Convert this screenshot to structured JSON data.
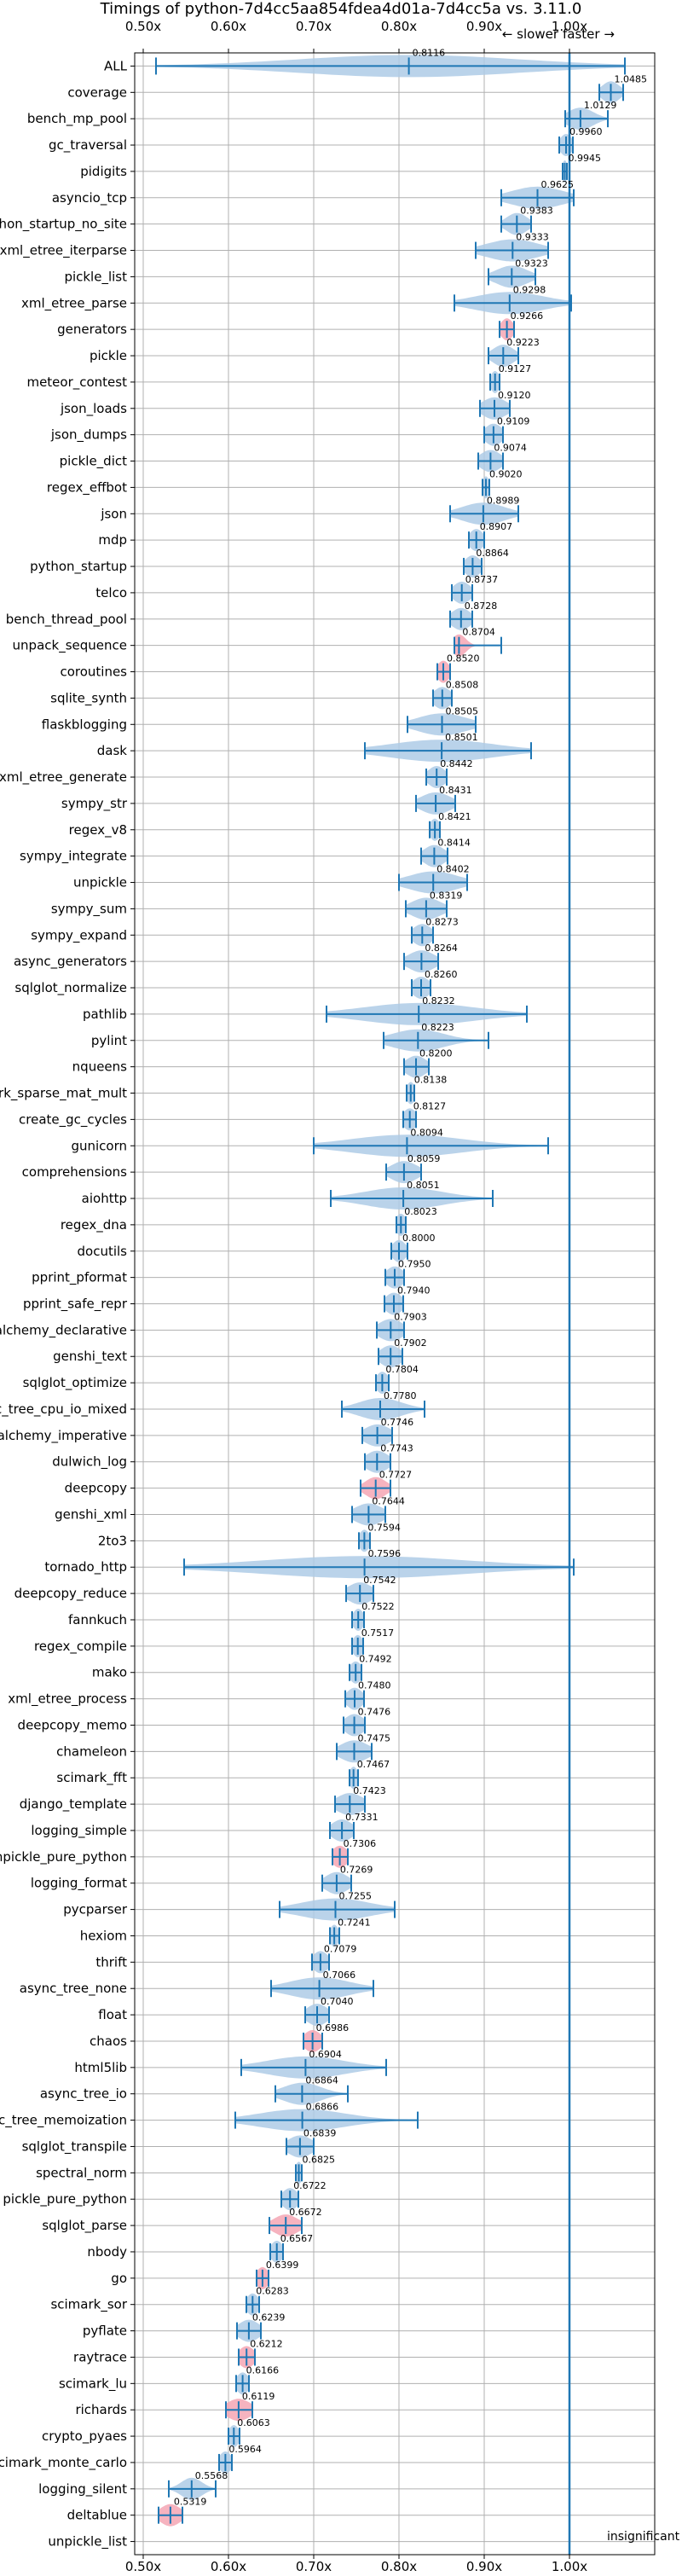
{
  "chart_data": {
    "type": "violin",
    "title": "Timings of python-7d4cc5aa854fdea4d01a-7d4cc5a vs. 3.11.0",
    "xlim": [
      0.49,
      1.1
    ],
    "xticks": [
      0.5,
      0.6,
      0.7,
      0.8,
      0.9,
      1.0
    ],
    "xtick_labels": [
      "0.50x",
      "0.60x",
      "0.70x",
      "0.80x",
      "0.90x",
      "1.00x"
    ],
    "reference_line": 1.0,
    "slower_label": "← slower",
    "faster_label": "faster →",
    "insignificant_label": "insignificant",
    "grid": true,
    "colors": {
      "violin": "#aecbe6",
      "error": "#1f77b4",
      "significant": "#f4a6b4",
      "grid": "#b0b0b0"
    },
    "series": [
      {
        "name": "ALL",
        "value": 0.8116,
        "label": "0.8116",
        "lo": 0.515,
        "hi": 1.065,
        "spread": 0.13,
        "sig": false
      },
      {
        "name": "coverage",
        "value": 1.0485,
        "label": "1.0485",
        "lo": 1.035,
        "hi": 1.063,
        "spread": 0.01,
        "sig": false
      },
      {
        "name": "bench_mp_pool",
        "value": 1.0129,
        "label": "1.0129",
        "lo": 0.995,
        "hi": 1.045,
        "spread": 0.015,
        "sig": false
      },
      {
        "name": "gc_traversal",
        "value": 0.996,
        "label": "0.9960",
        "lo": 0.988,
        "hi": 1.004,
        "spread": 0.007,
        "sig": false
      },
      {
        "name": "pidigits",
        "value": 0.9945,
        "label": "0.9945",
        "lo": 0.992,
        "hi": 0.997,
        "spread": 0.003,
        "sig": false
      },
      {
        "name": "asyncio_tcp",
        "value": 0.9625,
        "label": "0.9625",
        "lo": 0.92,
        "hi": 1.005,
        "spread": 0.03,
        "sig": false
      },
      {
        "name": "python_startup_no_site",
        "value": 0.9383,
        "label": "0.9383",
        "lo": 0.92,
        "hi": 0.955,
        "spread": 0.012,
        "sig": false
      },
      {
        "name": "xml_etree_iterparse",
        "value": 0.9333,
        "label": "0.9333",
        "lo": 0.89,
        "hi": 0.975,
        "spread": 0.03,
        "sig": false
      },
      {
        "name": "pickle_list",
        "value": 0.9323,
        "label": "0.9323",
        "lo": 0.905,
        "hi": 0.96,
        "spread": 0.018,
        "sig": false
      },
      {
        "name": "xml_etree_parse",
        "value": 0.9298,
        "label": "0.9298",
        "lo": 0.865,
        "hi": 1.002,
        "spread": 0.04,
        "sig": false
      },
      {
        "name": "generators",
        "value": 0.9266,
        "label": "0.9266",
        "lo": 0.918,
        "hi": 0.935,
        "spread": 0.007,
        "sig": true
      },
      {
        "name": "pickle",
        "value": 0.9223,
        "label": "0.9223",
        "lo": 0.905,
        "hi": 0.94,
        "spread": 0.012,
        "sig": false
      },
      {
        "name": "meteor_contest",
        "value": 0.9127,
        "label": "0.9127",
        "lo": 0.907,
        "hi": 0.918,
        "spread": 0.005,
        "sig": false
      },
      {
        "name": "json_loads",
        "value": 0.912,
        "label": "0.9120",
        "lo": 0.895,
        "hi": 0.93,
        "spread": 0.014,
        "sig": false
      },
      {
        "name": "json_dumps",
        "value": 0.9109,
        "label": "0.9109",
        "lo": 0.9,
        "hi": 0.922,
        "spread": 0.01,
        "sig": false
      },
      {
        "name": "pickle_dict",
        "value": 0.9074,
        "label": "0.9074",
        "lo": 0.893,
        "hi": 0.922,
        "spread": 0.012,
        "sig": false
      },
      {
        "name": "regex_effbot",
        "value": 0.902,
        "label": "0.9020",
        "lo": 0.898,
        "hi": 0.906,
        "spread": 0.004,
        "sig": false
      },
      {
        "name": "json",
        "value": 0.8989,
        "label": "0.8989",
        "lo": 0.86,
        "hi": 0.94,
        "spread": 0.025,
        "sig": false
      },
      {
        "name": "mdp",
        "value": 0.8907,
        "label": "0.8907",
        "lo": 0.882,
        "hi": 0.9,
        "spread": 0.008,
        "sig": false
      },
      {
        "name": "python_startup",
        "value": 0.8864,
        "label": "0.8864",
        "lo": 0.876,
        "hi": 0.897,
        "spread": 0.009,
        "sig": false
      },
      {
        "name": "telco",
        "value": 0.8737,
        "label": "0.8737",
        "lo": 0.862,
        "hi": 0.886,
        "spread": 0.01,
        "sig": false
      },
      {
        "name": "bench_thread_pool",
        "value": 0.8728,
        "label": "0.8728",
        "lo": 0.86,
        "hi": 0.886,
        "spread": 0.011,
        "sig": false
      },
      {
        "name": "unpack_sequence",
        "value": 0.8704,
        "label": "0.8704",
        "lo": 0.865,
        "hi": 0.92,
        "spread": 0.008,
        "sig": true
      },
      {
        "name": "coroutines",
        "value": 0.852,
        "label": "0.8520",
        "lo": 0.845,
        "hi": 0.86,
        "spread": 0.007,
        "sig": true
      },
      {
        "name": "sqlite_synth",
        "value": 0.8508,
        "label": "0.8508",
        "lo": 0.84,
        "hi": 0.862,
        "spread": 0.01,
        "sig": false
      },
      {
        "name": "flaskblogging",
        "value": 0.8505,
        "label": "0.8505",
        "lo": 0.81,
        "hi": 0.89,
        "spread": 0.028,
        "sig": false
      },
      {
        "name": "dask",
        "value": 0.8501,
        "label": "0.8501",
        "lo": 0.76,
        "hi": 0.955,
        "spread": 0.06,
        "sig": false
      },
      {
        "name": "xml_etree_generate",
        "value": 0.8442,
        "label": "0.8442",
        "lo": 0.832,
        "hi": 0.856,
        "spread": 0.01,
        "sig": false
      },
      {
        "name": "sympy_str",
        "value": 0.8431,
        "label": "0.8431",
        "lo": 0.82,
        "hi": 0.866,
        "spread": 0.017,
        "sig": false
      },
      {
        "name": "regex_v8",
        "value": 0.8421,
        "label": "0.8421",
        "lo": 0.836,
        "hi": 0.848,
        "spread": 0.006,
        "sig": false
      },
      {
        "name": "sympy_integrate",
        "value": 0.8414,
        "label": "0.8414",
        "lo": 0.826,
        "hi": 0.857,
        "spread": 0.012,
        "sig": false
      },
      {
        "name": "unpickle",
        "value": 0.8402,
        "label": "0.8402",
        "lo": 0.8,
        "hi": 0.88,
        "spread": 0.028,
        "sig": false
      },
      {
        "name": "sympy_sum",
        "value": 0.8319,
        "label": "0.8319",
        "lo": 0.808,
        "hi": 0.856,
        "spread": 0.017,
        "sig": false
      },
      {
        "name": "sympy_expand",
        "value": 0.8273,
        "label": "0.8273",
        "lo": 0.815,
        "hi": 0.84,
        "spread": 0.011,
        "sig": false
      },
      {
        "name": "async_generators",
        "value": 0.8264,
        "label": "0.8264",
        "lo": 0.806,
        "hi": 0.846,
        "spread": 0.015,
        "sig": false
      },
      {
        "name": "sqlglot_normalize",
        "value": 0.826,
        "label": "0.8260",
        "lo": 0.815,
        "hi": 0.837,
        "spread": 0.01,
        "sig": false
      },
      {
        "name": "pathlib",
        "value": 0.8232,
        "label": "0.8232",
        "lo": 0.715,
        "hi": 0.95,
        "spread": 0.065,
        "sig": false
      },
      {
        "name": "pylint",
        "value": 0.8223,
        "label": "0.8223",
        "lo": 0.782,
        "hi": 0.905,
        "spread": 0.03,
        "sig": false
      },
      {
        "name": "nqueens",
        "value": 0.82,
        "label": "0.8200",
        "lo": 0.806,
        "hi": 0.835,
        "spread": 0.012,
        "sig": false
      },
      {
        "name": "scimark_sparse_mat_mult",
        "value": 0.8138,
        "label": "0.8138",
        "lo": 0.809,
        "hi": 0.818,
        "spread": 0.005,
        "sig": false
      },
      {
        "name": "create_gc_cycles",
        "value": 0.8127,
        "label": "0.8127",
        "lo": 0.805,
        "hi": 0.82,
        "spread": 0.008,
        "sig": false
      },
      {
        "name": "gunicorn",
        "value": 0.8094,
        "label": "0.8094",
        "lo": 0.7,
        "hi": 0.975,
        "spread": 0.065,
        "sig": false
      },
      {
        "name": "comprehensions",
        "value": 0.8059,
        "label": "0.8059",
        "lo": 0.785,
        "hi": 0.826,
        "spread": 0.015,
        "sig": false
      },
      {
        "name": "aiohttp",
        "value": 0.8051,
        "label": "0.8051",
        "lo": 0.72,
        "hi": 0.91,
        "spread": 0.045,
        "sig": false
      },
      {
        "name": "regex_dna",
        "value": 0.8023,
        "label": "0.8023",
        "lo": 0.797,
        "hi": 0.808,
        "spread": 0.006,
        "sig": false
      },
      {
        "name": "docutils",
        "value": 0.8,
        "label": "0.8000",
        "lo": 0.791,
        "hi": 0.81,
        "spread": 0.008,
        "sig": false
      },
      {
        "name": "pprint_pformat",
        "value": 0.795,
        "label": "0.7950",
        "lo": 0.784,
        "hi": 0.806,
        "spread": 0.01,
        "sig": false
      },
      {
        "name": "pprint_safe_repr",
        "value": 0.794,
        "label": "0.7940",
        "lo": 0.783,
        "hi": 0.805,
        "spread": 0.01,
        "sig": false
      },
      {
        "name": "sqlalchemy_declarative",
        "value": 0.7903,
        "label": "0.7903",
        "lo": 0.774,
        "hi": 0.806,
        "spread": 0.014,
        "sig": false
      },
      {
        "name": "genshi_text",
        "value": 0.7902,
        "label": "0.7902",
        "lo": 0.776,
        "hi": 0.804,
        "spread": 0.012,
        "sig": false
      },
      {
        "name": "sqlglot_optimize",
        "value": 0.7804,
        "label": "0.7804",
        "lo": 0.773,
        "hi": 0.788,
        "spread": 0.007,
        "sig": false
      },
      {
        "name": "async_tree_cpu_io_mixed",
        "value": 0.778,
        "label": "0.7780",
        "lo": 0.733,
        "hi": 0.83,
        "spread": 0.025,
        "sig": false
      },
      {
        "name": "sqlalchemy_imperative",
        "value": 0.7746,
        "label": "0.7746",
        "lo": 0.757,
        "hi": 0.792,
        "spread": 0.015,
        "sig": false
      },
      {
        "name": "dulwich_log",
        "value": 0.7743,
        "label": "0.7743",
        "lo": 0.76,
        "hi": 0.79,
        "spread": 0.013,
        "sig": false
      },
      {
        "name": "deepcopy",
        "value": 0.7727,
        "label": "0.7727",
        "lo": 0.755,
        "hi": 0.79,
        "spread": 0.012,
        "sig": true
      },
      {
        "name": "genshi_xml",
        "value": 0.7644,
        "label": "0.7644",
        "lo": 0.745,
        "hi": 0.784,
        "spread": 0.016,
        "sig": false
      },
      {
        "name": "2to3",
        "value": 0.7594,
        "label": "0.7594",
        "lo": 0.753,
        "hi": 0.766,
        "spread": 0.006,
        "sig": false
      },
      {
        "name": "tornado_http",
        "value": 0.7596,
        "label": "0.7596",
        "lo": 0.548,
        "hi": 1.005,
        "spread": 0.12,
        "sig": false
      },
      {
        "name": "deepcopy_reduce",
        "value": 0.7542,
        "label": "0.7542",
        "lo": 0.738,
        "hi": 0.77,
        "spread": 0.014,
        "sig": false
      },
      {
        "name": "fannkuch",
        "value": 0.7522,
        "label": "0.7522",
        "lo": 0.745,
        "hi": 0.759,
        "spread": 0.006,
        "sig": false
      },
      {
        "name": "regex_compile",
        "value": 0.7517,
        "label": "0.7517",
        "lo": 0.745,
        "hi": 0.758,
        "spread": 0.006,
        "sig": false
      },
      {
        "name": "mako",
        "value": 0.7492,
        "label": "0.7492",
        "lo": 0.742,
        "hi": 0.756,
        "spread": 0.007,
        "sig": false
      },
      {
        "name": "xml_etree_process",
        "value": 0.748,
        "label": "0.7480",
        "lo": 0.737,
        "hi": 0.759,
        "spread": 0.009,
        "sig": false
      },
      {
        "name": "deepcopy_memo",
        "value": 0.7476,
        "label": "0.7476",
        "lo": 0.735,
        "hi": 0.76,
        "spread": 0.011,
        "sig": false
      },
      {
        "name": "chameleon",
        "value": 0.7475,
        "label": "0.7475",
        "lo": 0.727,
        "hi": 0.768,
        "spread": 0.016,
        "sig": false
      },
      {
        "name": "scimark_fft",
        "value": 0.7467,
        "label": "0.7467",
        "lo": 0.742,
        "hi": 0.752,
        "spread": 0.005,
        "sig": false
      },
      {
        "name": "django_template",
        "value": 0.7423,
        "label": "0.7423",
        "lo": 0.725,
        "hi": 0.76,
        "spread": 0.015,
        "sig": false
      },
      {
        "name": "logging_simple",
        "value": 0.7331,
        "label": "0.7331",
        "lo": 0.719,
        "hi": 0.747,
        "spread": 0.012,
        "sig": false
      },
      {
        "name": "unpickle_pure_python",
        "value": 0.7306,
        "label": "0.7306",
        "lo": 0.722,
        "hi": 0.74,
        "spread": 0.009,
        "sig": true
      },
      {
        "name": "logging_format",
        "value": 0.7269,
        "label": "0.7269",
        "lo": 0.71,
        "hi": 0.744,
        "spread": 0.013,
        "sig": false
      },
      {
        "name": "pycparser",
        "value": 0.7255,
        "label": "0.7255",
        "lo": 0.66,
        "hi": 0.795,
        "spread": 0.04,
        "sig": false
      },
      {
        "name": "hexiom",
        "value": 0.7241,
        "label": "0.7241",
        "lo": 0.719,
        "hi": 0.73,
        "spread": 0.005,
        "sig": false
      },
      {
        "name": "thrift",
        "value": 0.7079,
        "label": "0.7079",
        "lo": 0.698,
        "hi": 0.718,
        "spread": 0.009,
        "sig": false
      },
      {
        "name": "async_tree_none",
        "value": 0.7066,
        "label": "0.7066",
        "lo": 0.65,
        "hi": 0.77,
        "spread": 0.035,
        "sig": false
      },
      {
        "name": "float",
        "value": 0.704,
        "label": "0.7040",
        "lo": 0.69,
        "hi": 0.718,
        "spread": 0.012,
        "sig": false
      },
      {
        "name": "chaos",
        "value": 0.6986,
        "label": "0.6986",
        "lo": 0.688,
        "hi": 0.71,
        "spread": 0.01,
        "sig": true
      },
      {
        "name": "html5lib",
        "value": 0.6904,
        "label": "0.6904",
        "lo": 0.615,
        "hi": 0.785,
        "spread": 0.045,
        "sig": false
      },
      {
        "name": "async_tree_io",
        "value": 0.6864,
        "label": "0.6864",
        "lo": 0.655,
        "hi": 0.74,
        "spread": 0.022,
        "sig": false
      },
      {
        "name": "async_tree_memoization",
        "value": 0.6866,
        "label": "0.6866",
        "lo": 0.608,
        "hi": 0.822,
        "spread": 0.05,
        "sig": false
      },
      {
        "name": "sqlglot_transpile",
        "value": 0.6839,
        "label": "0.6839",
        "lo": 0.668,
        "hi": 0.7,
        "spread": 0.014,
        "sig": false
      },
      {
        "name": "spectral_norm",
        "value": 0.6825,
        "label": "0.6825",
        "lo": 0.679,
        "hi": 0.686,
        "spread": 0.004,
        "sig": false
      },
      {
        "name": "pickle_pure_python",
        "value": 0.6722,
        "label": "0.6722",
        "lo": 0.662,
        "hi": 0.682,
        "spread": 0.009,
        "sig": false
      },
      {
        "name": "sqlglot_parse",
        "value": 0.6672,
        "label": "0.6672",
        "lo": 0.648,
        "hi": 0.686,
        "spread": 0.014,
        "sig": true
      },
      {
        "name": "nbody",
        "value": 0.6567,
        "label": "0.6567",
        "lo": 0.649,
        "hi": 0.664,
        "spread": 0.007,
        "sig": false
      },
      {
        "name": "go",
        "value": 0.6399,
        "label": "0.6399",
        "lo": 0.633,
        "hi": 0.647,
        "spread": 0.007,
        "sig": true
      },
      {
        "name": "scimark_sor",
        "value": 0.6283,
        "label": "0.6283",
        "lo": 0.621,
        "hi": 0.636,
        "spread": 0.007,
        "sig": false
      },
      {
        "name": "pyflate",
        "value": 0.6239,
        "label": "0.6239",
        "lo": 0.61,
        "hi": 0.638,
        "spread": 0.012,
        "sig": false
      },
      {
        "name": "raytrace",
        "value": 0.6212,
        "label": "0.6212",
        "lo": 0.612,
        "hi": 0.631,
        "spread": 0.009,
        "sig": true
      },
      {
        "name": "scimark_lu",
        "value": 0.6166,
        "label": "0.6166",
        "lo": 0.609,
        "hi": 0.624,
        "spread": 0.007,
        "sig": false
      },
      {
        "name": "richards",
        "value": 0.6119,
        "label": "0.6119",
        "lo": 0.597,
        "hi": 0.628,
        "spread": 0.014,
        "sig": true
      },
      {
        "name": "crypto_pyaes",
        "value": 0.6063,
        "label": "0.6063",
        "lo": 0.6,
        "hi": 0.613,
        "spread": 0.006,
        "sig": false
      },
      {
        "name": "scimark_monte_carlo",
        "value": 0.5964,
        "label": "0.5964",
        "lo": 0.589,
        "hi": 0.604,
        "spread": 0.007,
        "sig": false
      },
      {
        "name": "logging_silent",
        "value": 0.5568,
        "label": "0.5568",
        "lo": 0.53,
        "hi": 0.585,
        "spread": 0.012,
        "sig": false
      },
      {
        "name": "deltablue",
        "value": 0.5319,
        "label": "0.5319",
        "lo": 0.518,
        "hi": 0.546,
        "spread": 0.012,
        "sig": true
      },
      {
        "name": "unpickle_list",
        "value": null,
        "label": "",
        "lo": null,
        "hi": null,
        "spread": 0,
        "sig": false
      }
    ]
  }
}
